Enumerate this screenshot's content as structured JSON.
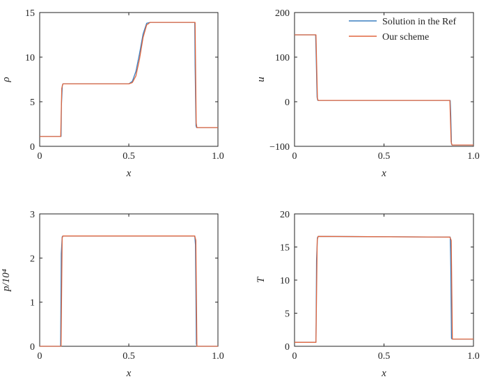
{
  "colors": {
    "reference": "#3a7fc1",
    "ours": "#e0663e",
    "axis": "#222222"
  },
  "legend": {
    "placement": "top-right",
    "entries": [
      "Solution in the Ref",
      "Our scheme"
    ]
  },
  "chart_data": [
    {
      "type": "line",
      "xlabel": "x",
      "ylabel": "ρ",
      "xlim": [
        0,
        1
      ],
      "ylim": [
        0,
        15
      ],
      "xticks": [
        "0",
        "0.5",
        "1.0"
      ],
      "yticks": [
        "0",
        "5",
        "10",
        "15"
      ],
      "grid": false,
      "series": [
        {
          "name": "Solution in the Ref",
          "x": [
            0,
            0.12,
            0.122,
            0.127,
            0.13,
            0.5,
            0.52,
            0.54,
            0.56,
            0.58,
            0.6,
            0.62,
            0.63,
            0.87,
            0.872,
            0.877,
            0.88,
            1.0
          ],
          "y": [
            1.1,
            1.1,
            4.5,
            6.8,
            7.0,
            7.0,
            7.3,
            8.4,
            10.4,
            12.6,
            13.8,
            13.9,
            13.9,
            13.9,
            9.0,
            2.3,
            2.1,
            2.1
          ]
        },
        {
          "name": "Our scheme",
          "x": [
            0,
            0.118,
            0.124,
            0.13,
            0.5,
            0.52,
            0.54,
            0.56,
            0.58,
            0.6,
            0.62,
            0.63,
            0.872,
            0.878,
            0.882,
            1.0
          ],
          "y": [
            1.1,
            1.1,
            6.5,
            7.0,
            7.0,
            7.15,
            7.9,
            9.8,
            12.2,
            13.6,
            13.9,
            13.9,
            13.9,
            2.6,
            2.1,
            2.1
          ]
        }
      ]
    },
    {
      "type": "line",
      "xlabel": "x",
      "ylabel": "u",
      "xlim": [
        0,
        1
      ],
      "ylim": [
        -100,
        200
      ],
      "xticks": [
        "0",
        "0.5",
        "1.0"
      ],
      "yticks": [
        "−100",
        "0",
        "100",
        "200"
      ],
      "grid": false,
      "series": [
        {
          "name": "Solution in the Ref",
          "x": [
            0,
            0.118,
            0.121,
            0.126,
            0.13,
            0.87,
            0.873,
            0.877,
            0.88,
            1.0
          ],
          "y": [
            150,
            150,
            100,
            10,
            3,
            3,
            -30,
            -95,
            -97,
            -97
          ]
        },
        {
          "name": "Our scheme",
          "x": [
            0,
            0.12,
            0.128,
            0.132,
            0.868,
            0.875,
            0.88,
            1.0
          ],
          "y": [
            150,
            150,
            8,
            3,
            3,
            -90,
            -97,
            -97
          ]
        }
      ]
    },
    {
      "type": "line",
      "xlabel": "x",
      "ylabel": "p/10⁴",
      "xlim": [
        0,
        1
      ],
      "ylim": [
        0,
        3
      ],
      "xticks": [
        "0",
        "0.5",
        "1.0"
      ],
      "yticks": [
        "0",
        "1",
        "2",
        "3"
      ],
      "grid": false,
      "series": [
        {
          "name": "Solution in the Ref",
          "x": [
            0,
            0.117,
            0.121,
            0.126,
            0.13,
            0.87,
            0.874,
            0.879,
            0.883,
            1.0
          ],
          "y": [
            0,
            0,
            2.1,
            2.48,
            2.5,
            2.5,
            2.3,
            0.05,
            0,
            0
          ]
        },
        {
          "name": "Our scheme",
          "x": [
            0,
            0.12,
            0.126,
            0.13,
            0.87,
            0.876,
            0.882,
            1.0
          ],
          "y": [
            0,
            0,
            2.45,
            2.5,
            2.5,
            2.4,
            0,
            0
          ]
        }
      ]
    },
    {
      "type": "line",
      "xlabel": "x",
      "ylabel": "T",
      "xlim": [
        0,
        1
      ],
      "ylim": [
        0,
        20
      ],
      "xticks": [
        "0",
        "0.5",
        "1.0"
      ],
      "yticks": [
        "0",
        "5",
        "10",
        "15",
        "20"
      ],
      "grid": false,
      "series": [
        {
          "name": "Solution in the Ref",
          "x": [
            0,
            0.12,
            0.123,
            0.128,
            0.132,
            0.87,
            0.873,
            0.877,
            0.88,
            1.0
          ],
          "y": [
            0.6,
            0.6,
            13.0,
            16.4,
            16.6,
            16.5,
            12.0,
            1.2,
            1.1,
            1.1
          ]
        },
        {
          "name": "Our scheme",
          "x": [
            0,
            0.12,
            0.127,
            0.132,
            0.868,
            0.876,
            0.882,
            1.0
          ],
          "y": [
            0.6,
            0.6,
            16.0,
            16.6,
            16.5,
            16.0,
            1.1,
            1.1
          ]
        }
      ]
    }
  ]
}
